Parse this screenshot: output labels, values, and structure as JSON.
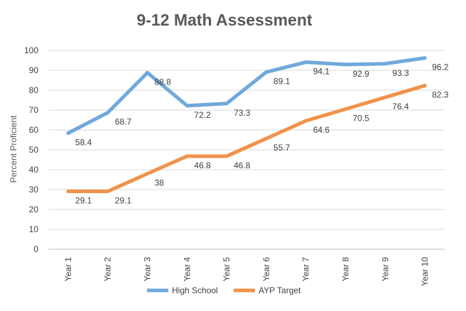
{
  "chart_data": {
    "type": "line",
    "title": "9-12 Math Assessment",
    "xlabel": "",
    "ylabel": "Percent Proficient",
    "categories": [
      "Year 1",
      "Year 2",
      "Year 3",
      "Year 4",
      "Year 5",
      "Year 6",
      "Year 7",
      "Year 8",
      "Year 9",
      "Year 10"
    ],
    "ylim": [
      0,
      100
    ],
    "yticks": [
      0,
      10,
      20,
      30,
      40,
      50,
      60,
      70,
      80,
      90,
      100
    ],
    "grid": true,
    "legend": "bottom",
    "series": [
      {
        "name": "High School",
        "color": "#6fa8dc",
        "values": [
          58.4,
          68.7,
          88.8,
          72.2,
          73.3,
          89.1,
          94.1,
          92.9,
          93.3,
          96.2
        ],
        "labels": [
          "58.4",
          "68.7",
          "88.8",
          "72.2",
          "73.3",
          "89.1",
          "94.1",
          "92.9",
          "93.3",
          "96.2"
        ]
      },
      {
        "name": "AYP Target",
        "color": "#f0924a",
        "values": [
          29.1,
          29.1,
          38,
          46.8,
          46.8,
          55.7,
          64.6,
          70.5,
          76.4,
          82.3
        ],
        "labels": [
          "29.1",
          "29.1",
          "38",
          "46.8",
          "46.8",
          "55.7",
          "64.6",
          "70.5",
          "76.4",
          "82.3"
        ]
      }
    ]
  }
}
